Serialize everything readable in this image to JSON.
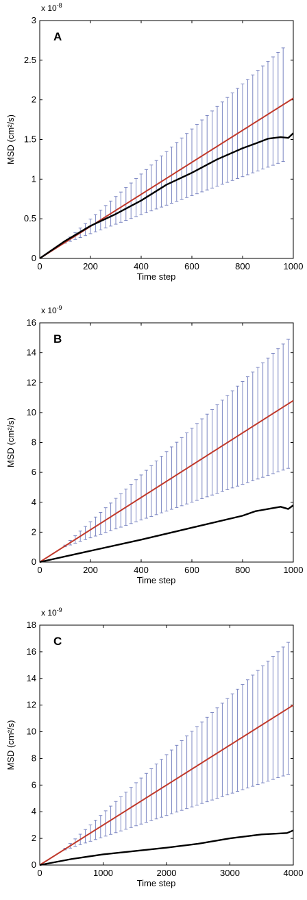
{
  "chart_data": [
    {
      "type": "line",
      "panel": "A",
      "xlabel": "Time step",
      "ylabel": "MSD (cm²/s)",
      "exponent": "x 10",
      "exponent_power": "-8",
      "xlim": [
        0,
        1000
      ],
      "ylim": [
        0,
        3
      ],
      "xticks": [
        0,
        200,
        400,
        600,
        800,
        1000
      ],
      "yticks": [
        0,
        0.5,
        1,
        1.5,
        2,
        2.5,
        3
      ],
      "ytick_labels": [
        "0",
        "0.5",
        "1",
        "1.5",
        "2",
        "2.5",
        "3"
      ],
      "grid": false,
      "series": [
        {
          "style": "line",
          "color": "#c0392b",
          "x": [
            0,
            1000
          ],
          "y": [
            0,
            2.02
          ]
        },
        {
          "style": "line",
          "color": "#000000",
          "x": [
            0,
            100,
            200,
            300,
            400,
            500,
            600,
            700,
            800,
            860,
            900,
            950,
            980,
            1000
          ],
          "y": [
            0,
            0.22,
            0.41,
            0.56,
            0.73,
            0.93,
            1.08,
            1.25,
            1.39,
            1.46,
            1.51,
            1.53,
            1.52,
            1.58
          ]
        }
      ],
      "error_bars": {
        "color": "#7b86c2",
        "x_start": 100,
        "x_step": 20,
        "x_end": 960,
        "lower_at_end": 1.32
      }
    },
    {
      "type": "line",
      "panel": "B",
      "xlabel": "Time step",
      "ylabel": "MSD (cm²/s)",
      "exponent": "x 10",
      "exponent_power": "-9",
      "xlim": [
        0,
        1000
      ],
      "ylim": [
        0,
        16
      ],
      "xticks": [
        0,
        200,
        400,
        600,
        800,
        1000
      ],
      "yticks": [
        0,
        2,
        4,
        6,
        8,
        10,
        12,
        14,
        16
      ],
      "ytick_labels": [
        "0",
        "2",
        "4",
        "6",
        "8",
        "10",
        "12",
        "14",
        "16"
      ],
      "grid": false,
      "series": [
        {
          "style": "line",
          "color": "#c0392b",
          "x": [
            0,
            1000
          ],
          "y": [
            0,
            10.8
          ]
        },
        {
          "style": "line",
          "color": "#000000",
          "x": [
            0,
            200,
            400,
            600,
            800,
            850,
            900,
            950,
            980,
            1000
          ],
          "y": [
            0,
            0.75,
            1.5,
            2.3,
            3.1,
            3.4,
            3.55,
            3.7,
            3.55,
            3.8
          ]
        }
      ],
      "error_bars": {
        "color": "#7b86c2",
        "x_start": 100,
        "x_step": 20,
        "x_end": 980,
        "lower_at_end": 6.8
      }
    },
    {
      "type": "line",
      "panel": "C",
      "xlabel": "Time step",
      "ylabel": "MSD (cm²/s)",
      "exponent": "x 10",
      "exponent_power": "-9",
      "xlim": [
        0,
        4000
      ],
      "ylim": [
        0,
        18
      ],
      "xticks": [
        0,
        1000,
        2000,
        3000,
        4000
      ],
      "yticks": [
        0,
        2,
        4,
        6,
        8,
        10,
        12,
        14,
        16,
        18
      ],
      "ytick_labels": [
        "0",
        "2",
        "4",
        "6",
        "8",
        "10",
        "12",
        "14",
        "16",
        "18"
      ],
      "grid": false,
      "series": [
        {
          "style": "line",
          "color": "#c0392b",
          "x": [
            0,
            4000
          ],
          "y": [
            0,
            12.0
          ]
        },
        {
          "style": "line",
          "color": "#000000",
          "x": [
            0,
            500,
            1000,
            1500,
            2000,
            2500,
            3000,
            3500,
            3900,
            4000
          ],
          "y": [
            0,
            0.45,
            0.8,
            1.05,
            1.3,
            1.6,
            2.0,
            2.3,
            2.4,
            2.6
          ]
        }
      ],
      "error_bars": {
        "color": "#7b86c2",
        "x_start": 400,
        "x_step": 80,
        "x_end": 3920,
        "lower_at_end": 7.4
      }
    }
  ]
}
